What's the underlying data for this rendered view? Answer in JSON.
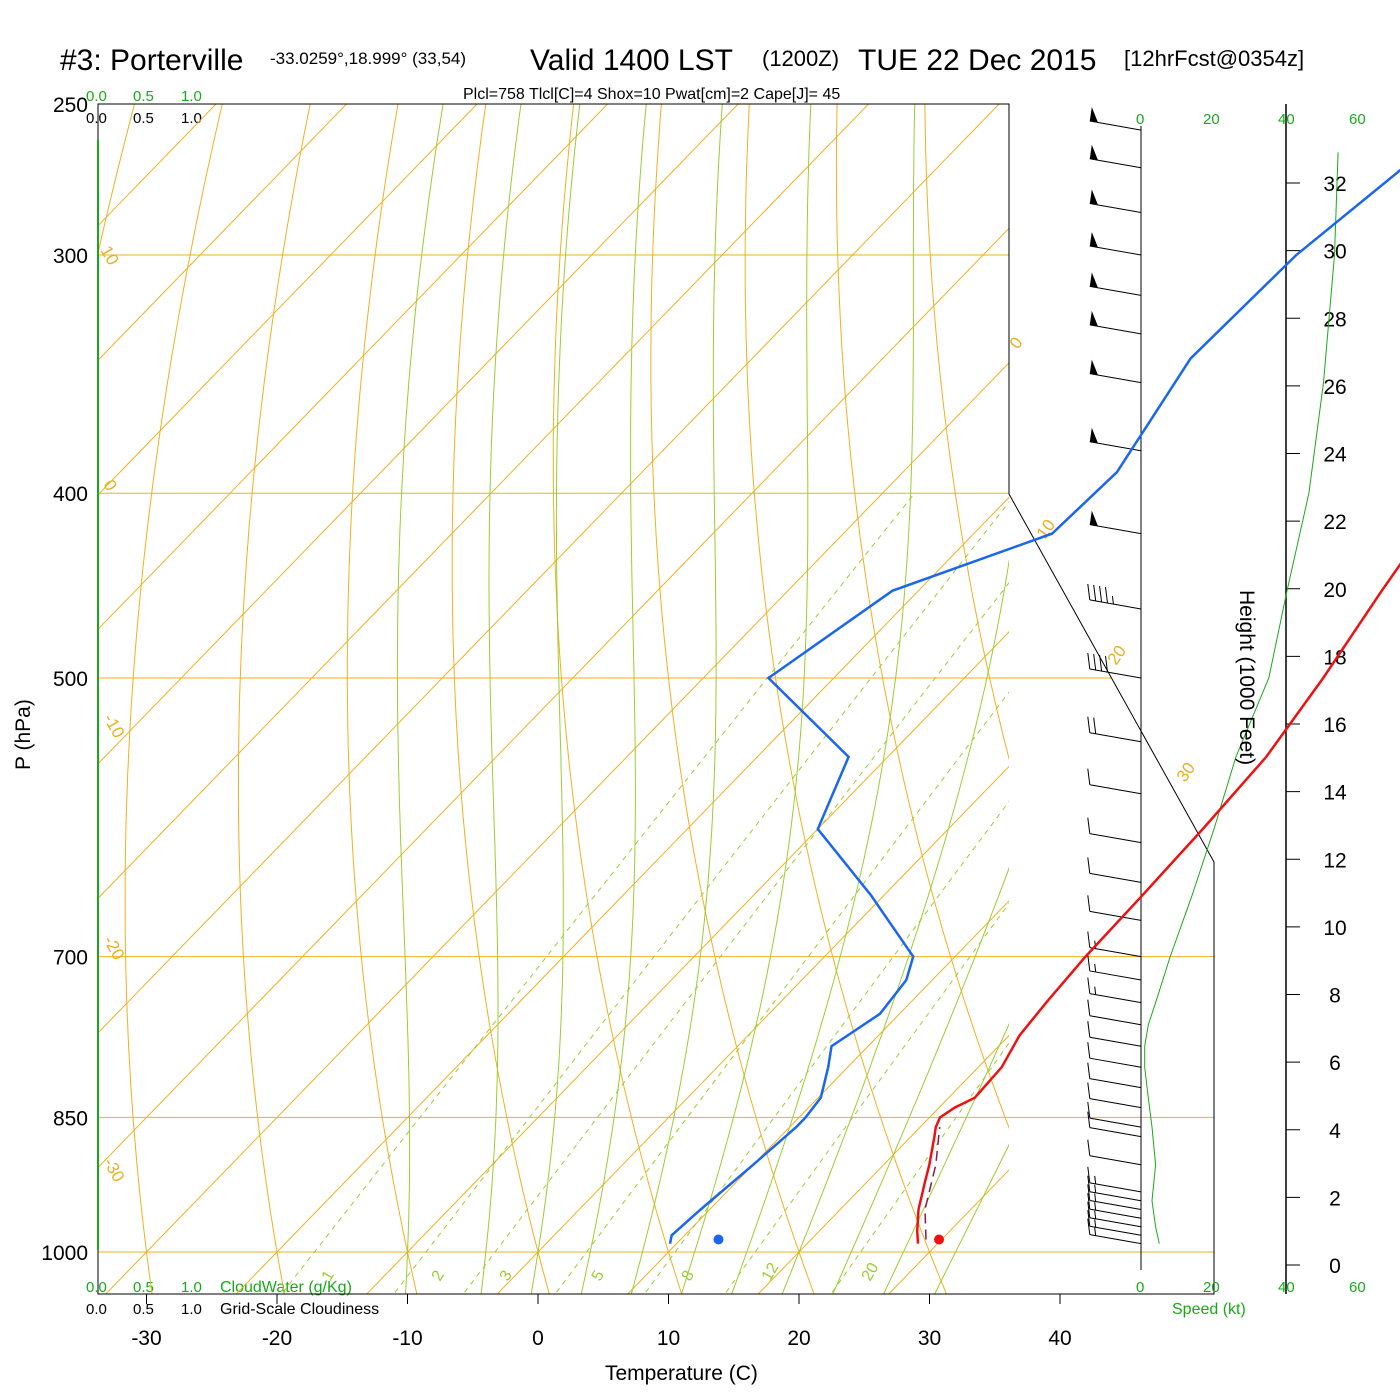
{
  "header": {
    "station": "#3: Porterville",
    "coords": "-33.0259°,18.999° (33,54)",
    "valid": "Valid 1400 LST",
    "zulu": "(1200Z)",
    "date": "TUE 22 Dec 2015",
    "forecast": "[12hrFcst@0354z]",
    "indices": "Plcl=758 Tlcl[C]=4 Shox=10 Pwat[cm]=2 Cape[J]= 45"
  },
  "colors": {
    "temperature": "#ee1111",
    "dewpoint": "#1a66ee",
    "isotherm": "#f0b020",
    "dry_adiabat": "#f0b020",
    "moist_adiabat": "#9acd32",
    "mixing_ratio": "#9acd32",
    "parcel": "#8b1a4a",
    "green_text": "#1aa81a",
    "indices_text": "#a0104a"
  },
  "chart_data": {
    "type": "skewt",
    "xlabel": "Temperature (C)",
    "ylabel": "P (hPa)",
    "y2label": "Height (1000 Feet)",
    "x_ticks": [
      "-30",
      "-20",
      "-10",
      "0",
      "10",
      "20",
      "30",
      "40"
    ],
    "x_tick_values": [
      -30,
      -20,
      -10,
      0,
      10,
      20,
      30,
      40
    ],
    "p_ticks": [
      "250",
      "300",
      "400",
      "500",
      "700",
      "850",
      "1000"
    ],
    "p_tick_values": [
      250,
      300,
      400,
      500,
      700,
      850,
      1000
    ],
    "height_ticks": [
      "0",
      "2",
      "4",
      "6",
      "8",
      "10",
      "12",
      "14",
      "16",
      "18",
      "20",
      "22",
      "24",
      "26",
      "28",
      "30",
      "32"
    ],
    "height_tick_values": [
      0,
      2,
      4,
      6,
      8,
      10,
      12,
      14,
      16,
      18,
      20,
      22,
      24,
      26,
      28,
      30,
      32
    ],
    "temperature": {
      "p": [
        990,
        975,
        950,
        920,
        900,
        870,
        860,
        850,
        840,
        830,
        800,
        770,
        740,
        700,
        650,
        600,
        550,
        500,
        450,
        400,
        350,
        320,
        300,
        265
      ],
      "t": [
        28.5,
        27.5,
        26.0,
        24.5,
        23.5,
        21.8,
        21.2,
        20.8,
        21.2,
        22.0,
        21.8,
        20.8,
        20.4,
        20.0,
        19.8,
        19.5,
        19.0,
        17.5,
        15.5,
        13.5,
        11.5,
        9.5,
        8.7,
        4.5
      ]
    },
    "dewpoint": {
      "p": [
        990,
        980,
        950,
        900,
        860,
        850,
        830,
        800,
        780,
        750,
        720,
        700,
        650,
        600,
        550,
        500,
        450,
        420,
        390,
        340,
        300,
        265
      ],
      "t": [
        9.5,
        9.0,
        9.3,
        10.0,
        10.5,
        10.5,
        10.2,
        8.5,
        7.2,
        8.5,
        8.0,
        6.8,
        -1.0,
        -10.0,
        -13.0,
        -25.0,
        -22.0,
        -14.0,
        -13.6,
        -16.4,
        -16.0,
        -14.0
      ]
    },
    "parcel": {
      "p": [
        985,
        950,
        900,
        860
      ],
      "t": [
        28.8,
        26.5,
        24.0,
        21.5
      ]
    },
    "surface_points": {
      "temperature": 29.8,
      "dewpoint": 12.9,
      "p": 985
    },
    "dry_adiabat_labels": [
      "10",
      "0",
      "-10",
      "-20",
      "-30",
      "0",
      "10",
      "20",
      "30"
    ],
    "mixing_ratio_labels": [
      "1",
      "2",
      "3",
      "5",
      "8",
      "12",
      "20"
    ],
    "cloud_scale": {
      "cloudwater_ticks": [
        "0.0",
        "0.5",
        "1.0"
      ],
      "cloudiness_ticks": [
        "0.0",
        "0.5",
        "1.0"
      ],
      "cloudwater_label": "CloudWater (g/Kg)",
      "cloudiness_label": "Grid-Scale Cloudiness"
    },
    "speed_axis": {
      "ticks": [
        "0",
        "20",
        "40",
        "60"
      ],
      "label": "Speed (kt)"
    },
    "wind_barbs": [
      {
        "p": 990,
        "speed": 15
      },
      {
        "p": 980,
        "speed": 15
      },
      {
        "p": 970,
        "speed": 15
      },
      {
        "p": 960,
        "speed": 15
      },
      {
        "p": 950,
        "speed": 15
      },
      {
        "p": 940,
        "speed": 15
      },
      {
        "p": 930,
        "speed": 15
      },
      {
        "p": 900,
        "speed": 10
      },
      {
        "p": 870,
        "speed": 10
      },
      {
        "p": 860,
        "speed": 10
      },
      {
        "p": 840,
        "speed": 10
      },
      {
        "p": 820,
        "speed": 10
      },
      {
        "p": 800,
        "speed": 10
      },
      {
        "p": 780,
        "speed": 10
      },
      {
        "p": 760,
        "speed": 10
      },
      {
        "p": 740,
        "speed": 15
      },
      {
        "p": 720,
        "speed": 15
      },
      {
        "p": 700,
        "speed": 15
      },
      {
        "p": 670,
        "speed": 10
      },
      {
        "p": 640,
        "speed": 10
      },
      {
        "p": 610,
        "speed": 10
      },
      {
        "p": 575,
        "speed": 10
      },
      {
        "p": 540,
        "speed": 20
      },
      {
        "p": 500,
        "speed": 40
      },
      {
        "p": 460,
        "speed": 45
      },
      {
        "p": 420,
        "speed": 50
      },
      {
        "p": 380,
        "speed": 50
      },
      {
        "p": 350,
        "speed": 50
      },
      {
        "p": 330,
        "speed": 50
      },
      {
        "p": 315,
        "speed": 50
      },
      {
        "p": 300,
        "speed": 50
      },
      {
        "p": 285,
        "speed": 50
      },
      {
        "p": 270,
        "speed": 50
      },
      {
        "p": 258,
        "speed": 50
      }
    ],
    "wind_speed_profile": {
      "p": [
        990,
        970,
        940,
        900,
        860,
        830,
        800,
        780,
        760,
        740,
        700,
        650,
        600,
        550,
        500,
        450,
        400,
        350,
        300,
        265
      ],
      "speed": [
        5,
        4,
        3,
        4,
        3,
        2,
        1,
        1,
        2,
        4,
        8,
        14,
        20,
        26,
        35,
        40,
        46,
        50,
        53,
        54
      ]
    }
  }
}
